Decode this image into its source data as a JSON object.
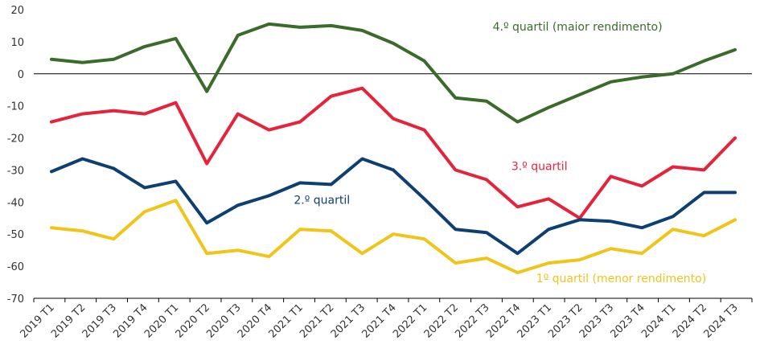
{
  "chart_data": {
    "type": "line",
    "categories": [
      "2019 T1",
      "2019 T2",
      "2019 T3",
      "2019 T4",
      "2020 T1",
      "2020 T2",
      "2020 T3",
      "2020 T4",
      "2021 T1",
      "2021 T2",
      "2021 T3",
      "2021 T4",
      "2022 T1",
      "2022 T2",
      "2022 T3",
      "2022 T4",
      "2023 T1",
      "2023 T2",
      "2023 T3",
      "2023 T4",
      "2024 T1",
      "2024 T2",
      "2024 T3"
    ],
    "ylim": [
      -70,
      20
    ],
    "yticks": [
      20,
      10,
      0,
      -10,
      -20,
      -30,
      -40,
      -50,
      -60,
      -70
    ],
    "series": [
      {
        "name": "4.º quartil (maior rendimento)",
        "color": "#3a6b2a",
        "values": [
          4.5,
          3.5,
          4.5,
          8.5,
          11,
          -5.5,
          12,
          15.5,
          14.5,
          15,
          13.5,
          9.5,
          4,
          -7.5,
          -8.5,
          -15,
          -10.5,
          -6.5,
          -2.5,
          -1,
          0,
          4,
          7.5
        ]
      },
      {
        "name": "3.º quartil",
        "color": "#e5243b",
        "values": [
          -15,
          -12.5,
          -11.5,
          -12.5,
          -9,
          -28,
          -12.5,
          -17.5,
          -15,
          -7,
          -4.5,
          -14,
          -17.5,
          -30,
          -33,
          -41.5,
          -39,
          -45,
          -32,
          -35,
          -29,
          -30,
          -20
        ]
      },
      {
        "name": "2.º quartil",
        "color": "#0d3f73",
        "values": [
          -30.5,
          -26.5,
          -29.5,
          -35.5,
          -33.5,
          -46.5,
          -41,
          -38,
          -34,
          -34.5,
          -26.5,
          -30,
          -39,
          -48.5,
          -49.5,
          -56,
          -48.5,
          -45.5,
          -46,
          -48,
          -44.5,
          -37,
          -37
        ]
      },
      {
        "name": "1º quartil (menor rendimento)",
        "color": "#f0c419",
        "values": [
          -48,
          -49,
          -51.5,
          -43,
          -39.5,
          -56,
          -55,
          -57,
          -48.5,
          -49,
          -56,
          -50,
          -51.5,
          -59,
          -57.5,
          -62,
          -59,
          -58,
          -54.5,
          -56,
          -48.5,
          -50.5,
          -45.5
        ]
      }
    ]
  }
}
